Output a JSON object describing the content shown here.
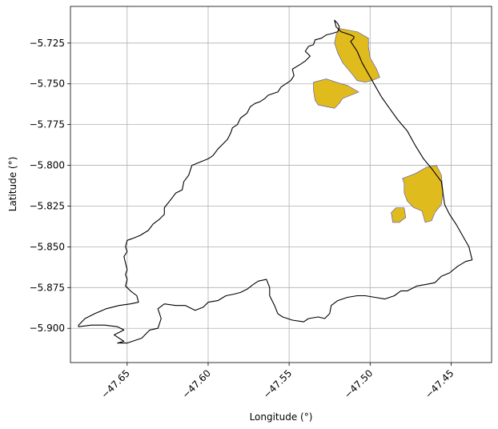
{
  "chart_data": {
    "type": "map",
    "xlabel": "Longitude (°)",
    "ylabel": "Latitude (°)",
    "xlim": [
      -47.685,
      -47.425
    ],
    "ylim": [
      -5.921,
      -5.7025
    ],
    "grid": true,
    "x_ticks": [
      {
        "value": -47.65,
        "label": "−47.65"
      },
      {
        "value": -47.6,
        "label": "−47.60"
      },
      {
        "value": -47.55,
        "label": "−47.55"
      },
      {
        "value": -47.5,
        "label": "−47.50"
      },
      {
        "value": -47.45,
        "label": "−47.45"
      }
    ],
    "y_ticks": [
      {
        "value": -5.725,
        "label": "−5.725"
      },
      {
        "value": -5.75,
        "label": "−5.750"
      },
      {
        "value": -5.775,
        "label": "−5.775"
      },
      {
        "value": -5.8,
        "label": "−5.800"
      },
      {
        "value": -5.825,
        "label": "−5.825"
      },
      {
        "value": -5.85,
        "label": "−5.850"
      },
      {
        "value": -5.875,
        "label": "−5.875"
      },
      {
        "value": -5.9,
        "label": "−5.900"
      }
    ],
    "colors": {
      "boundary": "#000000",
      "fill": "#e0bb1e",
      "fill_edge": "#4f4fb8",
      "grid": "#b0b0b0"
    },
    "boundary": [
      [
        -47.522,
        -5.711
      ],
      [
        -47.52,
        -5.713
      ],
      [
        -47.519,
        -5.715
      ],
      [
        -47.52,
        -5.718
      ],
      [
        -47.523,
        -5.719
      ],
      [
        -47.527,
        -5.72
      ],
      [
        -47.53,
        -5.722
      ],
      [
        -47.534,
        -5.723
      ],
      [
        -47.535,
        -5.726
      ],
      [
        -47.538,
        -5.727
      ],
      [
        -47.54,
        -5.73
      ],
      [
        -47.537,
        -5.733
      ],
      [
        -47.54,
        -5.736
      ],
      [
        -47.543,
        -5.738
      ],
      [
        -47.548,
        -5.741
      ],
      [
        -47.547,
        -5.745
      ],
      [
        -47.549,
        -5.748
      ],
      [
        -47.552,
        -5.75
      ],
      [
        -47.555,
        -5.752
      ],
      [
        -47.557,
        -5.755
      ],
      [
        -47.563,
        -5.757
      ],
      [
        -47.565,
        -5.759
      ],
      [
        -47.568,
        -5.761
      ],
      [
        -47.571,
        -5.762
      ],
      [
        -47.574,
        -5.764
      ],
      [
        -47.576,
        -5.768
      ],
      [
        -47.58,
        -5.771
      ],
      [
        -47.582,
        -5.775
      ],
      [
        -47.585,
        -5.777
      ],
      [
        -47.586,
        -5.78
      ],
      [
        -47.588,
        -5.784
      ],
      [
        -47.591,
        -5.787
      ],
      [
        -47.594,
        -5.79
      ],
      [
        -47.597,
        -5.794
      ],
      [
        -47.6,
        -5.796
      ],
      [
        -47.605,
        -5.798
      ],
      [
        -47.61,
        -5.8
      ],
      [
        -47.612,
        -5.806
      ],
      [
        -47.615,
        -5.81
      ],
      [
        -47.616,
        -5.815
      ],
      [
        -47.62,
        -5.817
      ],
      [
        -47.623,
        -5.821
      ],
      [
        -47.627,
        -5.826
      ],
      [
        -47.627,
        -5.83
      ],
      [
        -47.63,
        -5.833
      ],
      [
        -47.634,
        -5.836
      ],
      [
        -47.637,
        -5.84
      ],
      [
        -47.642,
        -5.843
      ],
      [
        -47.647,
        -5.845
      ],
      [
        -47.65,
        -5.846
      ],
      [
        -47.651,
        -5.85
      ],
      [
        -47.65,
        -5.853
      ],
      [
        -47.652,
        -5.856
      ],
      [
        -47.651,
        -5.86
      ],
      [
        -47.65,
        -5.864
      ],
      [
        -47.651,
        -5.867
      ],
      [
        -47.65,
        -5.87
      ],
      [
        -47.651,
        -5.874
      ],
      [
        -47.648,
        -5.877
      ],
      [
        -47.644,
        -5.88
      ],
      [
        -47.643,
        -5.884
      ],
      [
        -47.648,
        -5.885
      ],
      [
        -47.655,
        -5.886
      ],
      [
        -47.663,
        -5.888
      ],
      [
        -47.67,
        -5.891
      ],
      [
        -47.676,
        -5.894
      ],
      [
        -47.68,
        -5.898
      ],
      [
        -47.68,
        -5.899
      ],
      [
        -47.672,
        -5.898
      ],
      [
        -47.664,
        -5.898
      ],
      [
        -47.656,
        -5.899
      ],
      [
        -47.652,
        -5.901
      ],
      [
        -47.658,
        -5.904
      ],
      [
        -47.652,
        -5.908
      ],
      [
        -47.656,
        -5.909
      ],
      [
        -47.65,
        -5.909
      ],
      [
        -47.641,
        -5.906
      ],
      [
        -47.636,
        -5.901
      ],
      [
        -47.631,
        -5.9
      ],
      [
        -47.629,
        -5.894
      ],
      [
        -47.631,
        -5.888
      ],
      [
        -47.627,
        -5.885
      ],
      [
        -47.62,
        -5.886
      ],
      [
        -47.614,
        -5.886
      ],
      [
        -47.608,
        -5.889
      ],
      [
        -47.603,
        -5.887
      ],
      [
        -47.6,
        -5.884
      ],
      [
        -47.594,
        -5.883
      ],
      [
        -47.589,
        -5.88
      ],
      [
        -47.584,
        -5.879
      ],
      [
        -47.58,
        -5.878
      ],
      [
        -47.576,
        -5.876
      ],
      [
        -47.572,
        -5.873
      ],
      [
        -47.569,
        -5.871
      ],
      [
        -47.564,
        -5.87
      ],
      [
        -47.562,
        -5.875
      ],
      [
        -47.562,
        -5.88
      ],
      [
        -47.559,
        -5.886
      ],
      [
        -47.557,
        -5.891
      ],
      [
        -47.554,
        -5.893
      ],
      [
        -47.548,
        -5.895
      ],
      [
        -47.541,
        -5.896
      ],
      [
        -47.538,
        -5.894
      ],
      [
        -47.532,
        -5.893
      ],
      [
        -47.528,
        -5.894
      ],
      [
        -47.525,
        -5.891
      ],
      [
        -47.524,
        -5.886
      ],
      [
        -47.52,
        -5.883
      ],
      [
        -47.514,
        -5.881
      ],
      [
        -47.508,
        -5.88
      ],
      [
        -47.503,
        -5.88
      ],
      [
        -47.497,
        -5.881
      ],
      [
        -47.491,
        -5.882
      ],
      [
        -47.485,
        -5.88
      ],
      [
        -47.481,
        -5.877
      ],
      [
        -47.477,
        -5.877
      ],
      [
        -47.471,
        -5.874
      ],
      [
        -47.465,
        -5.873
      ],
      [
        -47.46,
        -5.872
      ],
      [
        -47.456,
        -5.868
      ],
      [
        -47.451,
        -5.866
      ],
      [
        -47.446,
        -5.862
      ],
      [
        -47.441,
        -5.859
      ],
      [
        -47.437,
        -5.858
      ],
      [
        -47.439,
        -5.85
      ],
      [
        -47.443,
        -5.843
      ],
      [
        -47.447,
        -5.836
      ],
      [
        -47.451,
        -5.83
      ],
      [
        -47.454,
        -5.824
      ],
      [
        -47.455,
        -5.817
      ],
      [
        -47.456,
        -5.81
      ],
      [
        -47.462,
        -5.802
      ],
      [
        -47.467,
        -5.796
      ],
      [
        -47.472,
        -5.788
      ],
      [
        -47.477,
        -5.779
      ],
      [
        -47.483,
        -5.772
      ],
      [
        -47.488,
        -5.765
      ],
      [
        -47.493,
        -5.758
      ],
      [
        -47.497,
        -5.751
      ],
      [
        -47.501,
        -5.744
      ],
      [
        -47.505,
        -5.737
      ],
      [
        -47.508,
        -5.73
      ],
      [
        -47.51,
        -5.727
      ],
      [
        -47.512,
        -5.724
      ],
      [
        -47.51,
        -5.722
      ],
      [
        -47.51,
        -5.721
      ],
      [
        -47.512,
        -5.72
      ],
      [
        -47.518,
        -5.718
      ],
      [
        -47.521,
        -5.715
      ],
      [
        -47.522,
        -5.711
      ]
    ],
    "fill_polygons": [
      [
        [
          -47.519,
          -5.716
        ],
        [
          -47.508,
          -5.718
        ],
        [
          -47.501,
          -5.722
        ],
        [
          -47.501,
          -5.727
        ],
        [
          -47.5,
          -5.734
        ],
        [
          -47.496,
          -5.741
        ],
        [
          -47.494,
          -5.746
        ],
        [
          -47.499,
          -5.748
        ],
        [
          -47.503,
          -5.749
        ],
        [
          -47.508,
          -5.748
        ],
        [
          -47.512,
          -5.743
        ],
        [
          -47.517,
          -5.737
        ],
        [
          -47.52,
          -5.731
        ],
        [
          -47.522,
          -5.725
        ],
        [
          -47.521,
          -5.72
        ]
      ],
      [
        [
          -47.535,
          -5.749
        ],
        [
          -47.527,
          -5.747
        ],
        [
          -47.521,
          -5.749
        ],
        [
          -47.514,
          -5.751
        ],
        [
          -47.507,
          -5.755
        ],
        [
          -47.512,
          -5.757
        ],
        [
          -47.517,
          -5.759
        ],
        [
          -47.519,
          -5.762
        ],
        [
          -47.522,
          -5.765
        ],
        [
          -47.527,
          -5.764
        ],
        [
          -47.532,
          -5.763
        ],
        [
          -47.534,
          -5.76
        ],
        [
          -47.535,
          -5.754
        ]
      ],
      [
        [
          -47.48,
          -5.808
        ],
        [
          -47.472,
          -5.805
        ],
        [
          -47.465,
          -5.801
        ],
        [
          -47.459,
          -5.8
        ],
        [
          -47.456,
          -5.806
        ],
        [
          -47.455,
          -5.816
        ],
        [
          -47.456,
          -5.824
        ],
        [
          -47.46,
          -5.829
        ],
        [
          -47.462,
          -5.834
        ],
        [
          -47.466,
          -5.835
        ],
        [
          -47.468,
          -5.828
        ],
        [
          -47.473,
          -5.826
        ],
        [
          -47.477,
          -5.822
        ],
        [
          -47.479,
          -5.817
        ],
        [
          -47.479,
          -5.811
        ]
      ]
    ],
    "fill_hole": [
      [
        -47.484,
        -5.826
      ],
      [
        -47.479,
        -5.826
      ],
      [
        -47.478,
        -5.832
      ],
      [
        -47.482,
        -5.835
      ],
      [
        -47.486,
        -5.835
      ],
      [
        -47.487,
        -5.829
      ]
    ]
  }
}
